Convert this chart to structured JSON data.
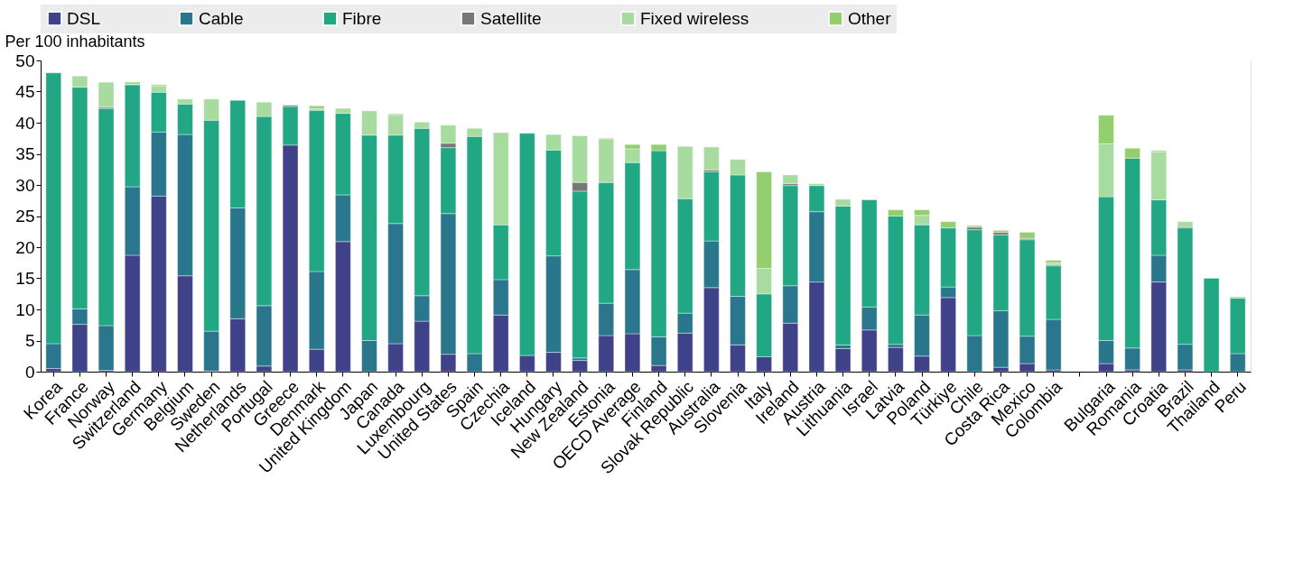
{
  "chart_data": {
    "type": "bar",
    "stacked": true,
    "ylabel": "Per 100 inhabitants",
    "ylim": [
      0,
      50
    ],
    "yticks": [
      0,
      5,
      10,
      15,
      20,
      25,
      30,
      35,
      40,
      45,
      50
    ],
    "grid": true,
    "legend": "top",
    "categories": [
      "Korea",
      "France",
      "Norway",
      "Switzerland",
      "Germany",
      "Belgium",
      "Sweden",
      "Netherlands",
      "Portugal",
      "Greece",
      "Denmark",
      "United Kingdom",
      "Japan",
      "Canada",
      "Luxembourg",
      "United States",
      "Spain",
      "Czechia",
      "Iceland",
      "Hungary",
      "New Zealand",
      "Estonia",
      "OECD Average",
      "Finland",
      "Slovak Republic",
      "Australia",
      "Slovenia",
      "Italy",
      "Ireland",
      "Austria",
      "Lithuania",
      "Israel",
      "Latvia",
      "Poland",
      "Türkiye",
      "Chile",
      "Costa Rica",
      "Mexico",
      "Colombia",
      null,
      "Bulgaria",
      "Romania",
      "Croatia",
      "Brazil",
      "Thailand",
      "Peru"
    ],
    "series": [
      {
        "name": "DSL",
        "color": "#3f4288",
        "values": [
          0.5,
          7.6,
          0.2,
          18.7,
          28.2,
          15.4,
          0.1,
          8.5,
          0.9,
          36.4,
          3.6,
          20.9,
          0,
          4.5,
          8.1,
          2.8,
          0,
          9.1,
          2.6,
          3.1,
          1.8,
          5.8,
          6.1,
          1.0,
          6.2,
          13.5,
          4.3,
          2.4,
          7.8,
          14.4,
          3.7,
          6.7,
          3.9,
          2.5,
          11.9,
          0,
          0.7,
          1.3,
          0.3,
          null,
          1.3,
          0.3,
          14.4,
          0.3,
          0,
          0
        ]
      },
      {
        "name": "Cable",
        "color": "#2a768c",
        "values": [
          4.0,
          2.5,
          7.2,
          11.0,
          10.3,
          22.7,
          6.4,
          17.8,
          9.7,
          0,
          12.5,
          7.5,
          5.0,
          19.3,
          4.1,
          22.6,
          2.9,
          5.7,
          0,
          15.5,
          0.4,
          5.2,
          10.3,
          4.6,
          3.2,
          7.5,
          7.8,
          0,
          6.0,
          11.3,
          0.6,
          3.7,
          0.5,
          6.6,
          1.7,
          5.8,
          9.1,
          4.4,
          8.1,
          null,
          3.7,
          3.5,
          4.3,
          4.1,
          0,
          2.9
        ]
      },
      {
        "name": "Fibre",
        "color": "#22a784",
        "values": [
          43.5,
          35.6,
          34.9,
          16.4,
          6.4,
          4.9,
          33.9,
          17.3,
          30.4,
          6.2,
          25.9,
          13.1,
          33.0,
          14.2,
          26.9,
          10.6,
          34.9,
          8.8,
          35.7,
          17.0,
          26.8,
          19.4,
          17.2,
          29.9,
          18.4,
          11.1,
          19.5,
          10.1,
          16.1,
          4.2,
          22.3,
          17.2,
          20.6,
          14.5,
          9.5,
          17.0,
          12.2,
          15.5,
          8.6,
          null,
          23.1,
          30.5,
          8.9,
          18.7,
          15.0,
          8.9
        ]
      },
      {
        "name": "Satellite",
        "color": "#777777",
        "values": [
          0,
          0,
          0.2,
          0,
          null,
          null,
          0,
          0,
          0,
          0.2,
          0,
          null,
          0,
          0,
          0,
          0.7,
          0,
          0,
          0,
          0,
          1.4,
          0,
          0,
          0,
          0,
          0.3,
          0,
          0,
          0.3,
          0,
          0,
          0,
          0,
          0,
          0,
          0.4,
          0.4,
          0.2,
          0.2,
          null,
          0,
          0,
          0,
          0.2,
          0,
          0
        ]
      },
      {
        "name": "Fixed wireless",
        "color": "#a8dba0",
        "values": [
          0,
          1.8,
          4.0,
          0.1,
          1.0,
          0.8,
          3.4,
          0,
          2.3,
          0,
          0.3,
          0.8,
          3.9,
          3.2,
          1.0,
          2.9,
          1.3,
          14.8,
          0,
          2.5,
          7.5,
          7.0,
          2.2,
          0,
          8.4,
          3.7,
          2.5,
          4.1,
          1.4,
          0.3,
          1.1,
          0,
          0,
          1.5,
          0,
          0.3,
          0,
          0,
          0.3,
          null,
          8.5,
          0,
          7.7,
          0.8,
          0,
          null
        ]
      },
      {
        "name": "Other",
        "color": "#93cf6e",
        "values": [
          0,
          0,
          0,
          0.3,
          0.2,
          0,
          0,
          0,
          0,
          0,
          0.4,
          0,
          0,
          0.2,
          0,
          0,
          0,
          0,
          0,
          0,
          0,
          0.1,
          0.7,
          1.0,
          0,
          0,
          0,
          15.5,
          0,
          0,
          0,
          0,
          1.0,
          0.9,
          1.0,
          0,
          0.3,
          1.0,
          0.4,
          null,
          4.6,
          1.6,
          0.2,
          0,
          0,
          0.2
        ]
      }
    ]
  }
}
